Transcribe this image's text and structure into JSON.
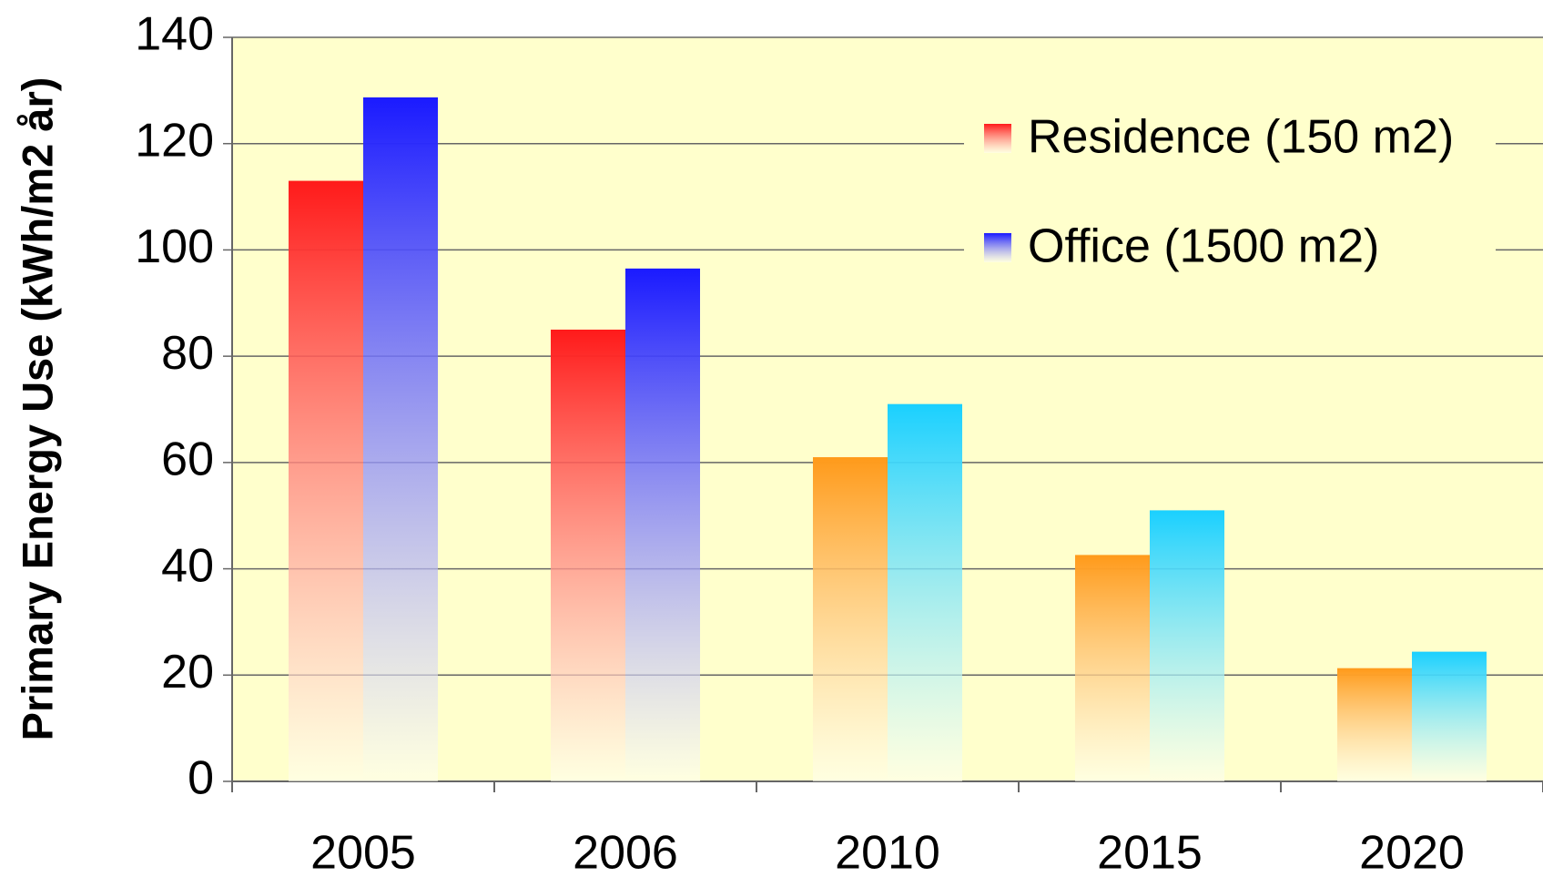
{
  "chart_data": {
    "type": "bar",
    "y_label": "Primary Energy Use (kWh/m2 år)",
    "categories": [
      "2005",
      "2006",
      "2010",
      "2015",
      "2020"
    ],
    "series": [
      {
        "name": "Residence (150 m2)",
        "color": "#ff1a1a",
        "colors": [
          "#ff1a1a",
          "#ff1a1a",
          "#ff9a1a",
          "#ff9a1a",
          "#ff9a1a"
        ],
        "values": [
          113,
          85,
          61,
          42.6,
          21.3
        ]
      },
      {
        "name": "Office (1500 m2)",
        "color": "#1a1aff",
        "colors": [
          "#1a1aff",
          "#1a1aff",
          "#1ad0ff",
          "#1ad0ff",
          "#1ad0ff"
        ],
        "values": [
          128.7,
          96.5,
          71,
          51,
          24.4
        ]
      }
    ],
    "ylim": [
      0,
      140
    ],
    "yticks": [
      0,
      20,
      40,
      60,
      80,
      100,
      120,
      140
    ],
    "grid": true,
    "legend": "upper right"
  }
}
